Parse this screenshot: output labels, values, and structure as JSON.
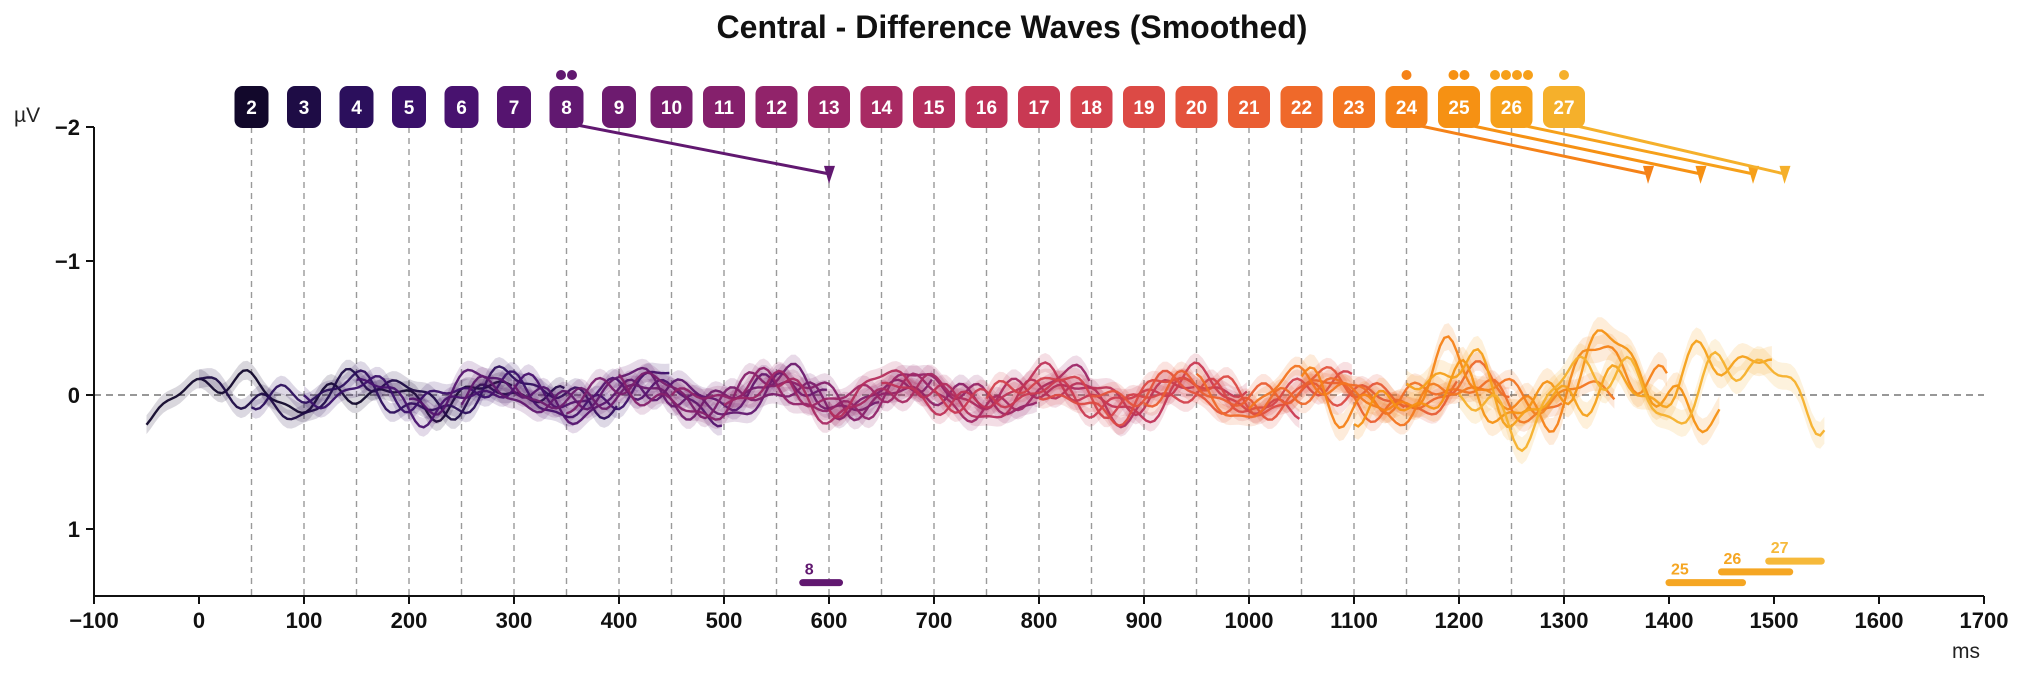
{
  "chart_data": {
    "type": "line",
    "title": "Central - Difference Waves (Smoothed)",
    "xlabel": "ms",
    "ylabel": "µV",
    "xlim": [
      -100,
      1700
    ],
    "ylim": [
      1.5,
      -2
    ],
    "y_axis_inverted": true,
    "x_ticks": [
      -100,
      0,
      100,
      200,
      300,
      400,
      500,
      600,
      700,
      800,
      900,
      1000,
      1100,
      1200,
      1300,
      1400,
      1500,
      1600,
      1700
    ],
    "x_tick_labels": [
      "−100",
      "0",
      "100",
      "200",
      "300",
      "400",
      "500",
      "600",
      "700",
      "800",
      "900",
      "1000",
      "1100",
      "1200",
      "1300",
      "1400",
      "1500",
      "1600",
      "1700"
    ],
    "y_ticks": [
      -2,
      -1,
      0,
      1
    ],
    "y_tick_labels": [
      "−2",
      "−1",
      "0",
      "1"
    ],
    "zero_line": true,
    "grid": false,
    "colormap": "inferno-like (dark purple → yellow)",
    "onset_markers": [
      {
        "label": "2",
        "time": 50,
        "color": "#12082b"
      },
      {
        "label": "3",
        "time": 100,
        "color": "#1e0c45"
      },
      {
        "label": "4",
        "time": 150,
        "color": "#2b0f5c"
      },
      {
        "label": "5",
        "time": 200,
        "color": "#3a106a"
      },
      {
        "label": "6",
        "time": 250,
        "color": "#48126f"
      },
      {
        "label": "7",
        "time": 300,
        "color": "#55146f"
      },
      {
        "label": "8",
        "time": 350,
        "color": "#611870",
        "dots": 2
      },
      {
        "label": "9",
        "time": 400,
        "color": "#6d1b6f"
      },
      {
        "label": "10",
        "time": 450,
        "color": "#791d6e"
      },
      {
        "label": "11",
        "time": 500,
        "color": "#85206c"
      },
      {
        "label": "12",
        "time": 550,
        "color": "#91236a"
      },
      {
        "label": "13",
        "time": 600,
        "color": "#9d2667"
      },
      {
        "label": "14",
        "time": 650,
        "color": "#a82a63"
      },
      {
        "label": "15",
        "time": 700,
        "color": "#b42e5e"
      },
      {
        "label": "16",
        "time": 750,
        "color": "#bf3359"
      },
      {
        "label": "17",
        "time": 800,
        "color": "#c93953"
      },
      {
        "label": "18",
        "time": 850,
        "color": "#d3414d"
      },
      {
        "label": "19",
        "time": 900,
        "color": "#dc4a45"
      },
      {
        "label": "20",
        "time": 950,
        "color": "#e4533d"
      },
      {
        "label": "21",
        "time": 1000,
        "color": "#ea5e33"
      },
      {
        "label": "22",
        "time": 1050,
        "color": "#ef692a"
      },
      {
        "label": "23",
        "time": 1100,
        "color": "#f37521"
      },
      {
        "label": "24",
        "time": 1150,
        "color": "#f58218",
        "dots": 1
      },
      {
        "label": "25",
        "time": 1200,
        "color": "#f69113",
        "dots": 2
      },
      {
        "label": "26",
        "time": 1250,
        "color": "#f6a01a",
        "dots": 4
      },
      {
        "label": "27",
        "time": 1300,
        "color": "#f5b02b",
        "dots": 1
      }
    ],
    "peak_pointers": [
      {
        "from_label": "8",
        "from_time": 350,
        "to_time": 600,
        "to_value": -1.65,
        "color": "#611870"
      },
      {
        "from_label": "24",
        "from_time": 1150,
        "to_time": 1380,
        "to_value": -1.65,
        "color": "#f58218"
      },
      {
        "from_label": "25",
        "from_time": 1200,
        "to_time": 1430,
        "to_value": -1.65,
        "color": "#f69113"
      },
      {
        "from_label": "26",
        "from_time": 1250,
        "to_time": 1480,
        "to_value": -1.65,
        "color": "#f6a01a"
      },
      {
        "from_label": "27",
        "from_time": 1300,
        "to_time": 1510,
        "to_value": -1.65,
        "color": "#f5b02b"
      }
    ],
    "significance_bars": [
      {
        "label": "8",
        "start": 575,
        "end": 610,
        "level": 1.4,
        "color": "#611870"
      },
      {
        "label": "25",
        "start": 1400,
        "end": 1470,
        "level": 1.4,
        "color": "#f5a623"
      },
      {
        "label": "26",
        "start": 1450,
        "end": 1515,
        "level": 1.32,
        "color": "#f5a623"
      },
      {
        "label": "27",
        "start": 1495,
        "end": 1545,
        "level": 1.24,
        "color": "#f6b93a"
      }
    ],
    "series": [
      {
        "label": "2",
        "color": "#12082b",
        "t_start": -50,
        "t_end": 300
      },
      {
        "label": "3",
        "color": "#1e0c45",
        "t_start": 0,
        "t_end": 350
      },
      {
        "label": "4",
        "color": "#2b0f5c",
        "t_start": 50,
        "t_end": 400
      },
      {
        "label": "5",
        "color": "#3a106a",
        "t_start": 100,
        "t_end": 450
      },
      {
        "label": "6",
        "color": "#48126f",
        "t_start": 150,
        "t_end": 500
      },
      {
        "label": "7",
        "color": "#55146f",
        "t_start": 200,
        "t_end": 550
      },
      {
        "label": "8",
        "color": "#611870",
        "t_start": 250,
        "t_end": 600
      },
      {
        "label": "9",
        "color": "#6d1b6f",
        "t_start": 300,
        "t_end": 650
      },
      {
        "label": "10",
        "color": "#791d6e",
        "t_start": 350,
        "t_end": 700
      },
      {
        "label": "11",
        "color": "#85206c",
        "t_start": 400,
        "t_end": 750
      },
      {
        "label": "12",
        "color": "#91236a",
        "t_start": 450,
        "t_end": 800
      },
      {
        "label": "13",
        "color": "#9d2667",
        "t_start": 500,
        "t_end": 850
      },
      {
        "label": "14",
        "color": "#a82a63",
        "t_start": 550,
        "t_end": 900
      },
      {
        "label": "15",
        "color": "#b42e5e",
        "t_start": 600,
        "t_end": 950
      },
      {
        "label": "16",
        "color": "#bf3359",
        "t_start": 650,
        "t_end": 1000
      },
      {
        "label": "17",
        "color": "#c93953",
        "t_start": 700,
        "t_end": 1050
      },
      {
        "label": "18",
        "color": "#d3414d",
        "t_start": 750,
        "t_end": 1100
      },
      {
        "label": "19",
        "color": "#dc4a45",
        "t_start": 800,
        "t_end": 1150
      },
      {
        "label": "20",
        "color": "#e4533d",
        "t_start": 850,
        "t_end": 1200
      },
      {
        "label": "21",
        "color": "#ea5e33",
        "t_start": 900,
        "t_end": 1250
      },
      {
        "label": "22",
        "color": "#ef692a",
        "t_start": 950,
        "t_end": 1300
      },
      {
        "label": "23",
        "color": "#f37521",
        "t_start": 1000,
        "t_end": 1350
      },
      {
        "label": "24",
        "color": "#f58218",
        "t_start": 1050,
        "t_end": 1400
      },
      {
        "label": "25",
        "color": "#f69113",
        "t_start": 1100,
        "t_end": 1450
      },
      {
        "label": "26",
        "color": "#f6a01a",
        "t_start": 1150,
        "t_end": 1500
      },
      {
        "label": "27",
        "color": "#f5b02b",
        "t_start": 1200,
        "t_end": 1550
      }
    ]
  }
}
